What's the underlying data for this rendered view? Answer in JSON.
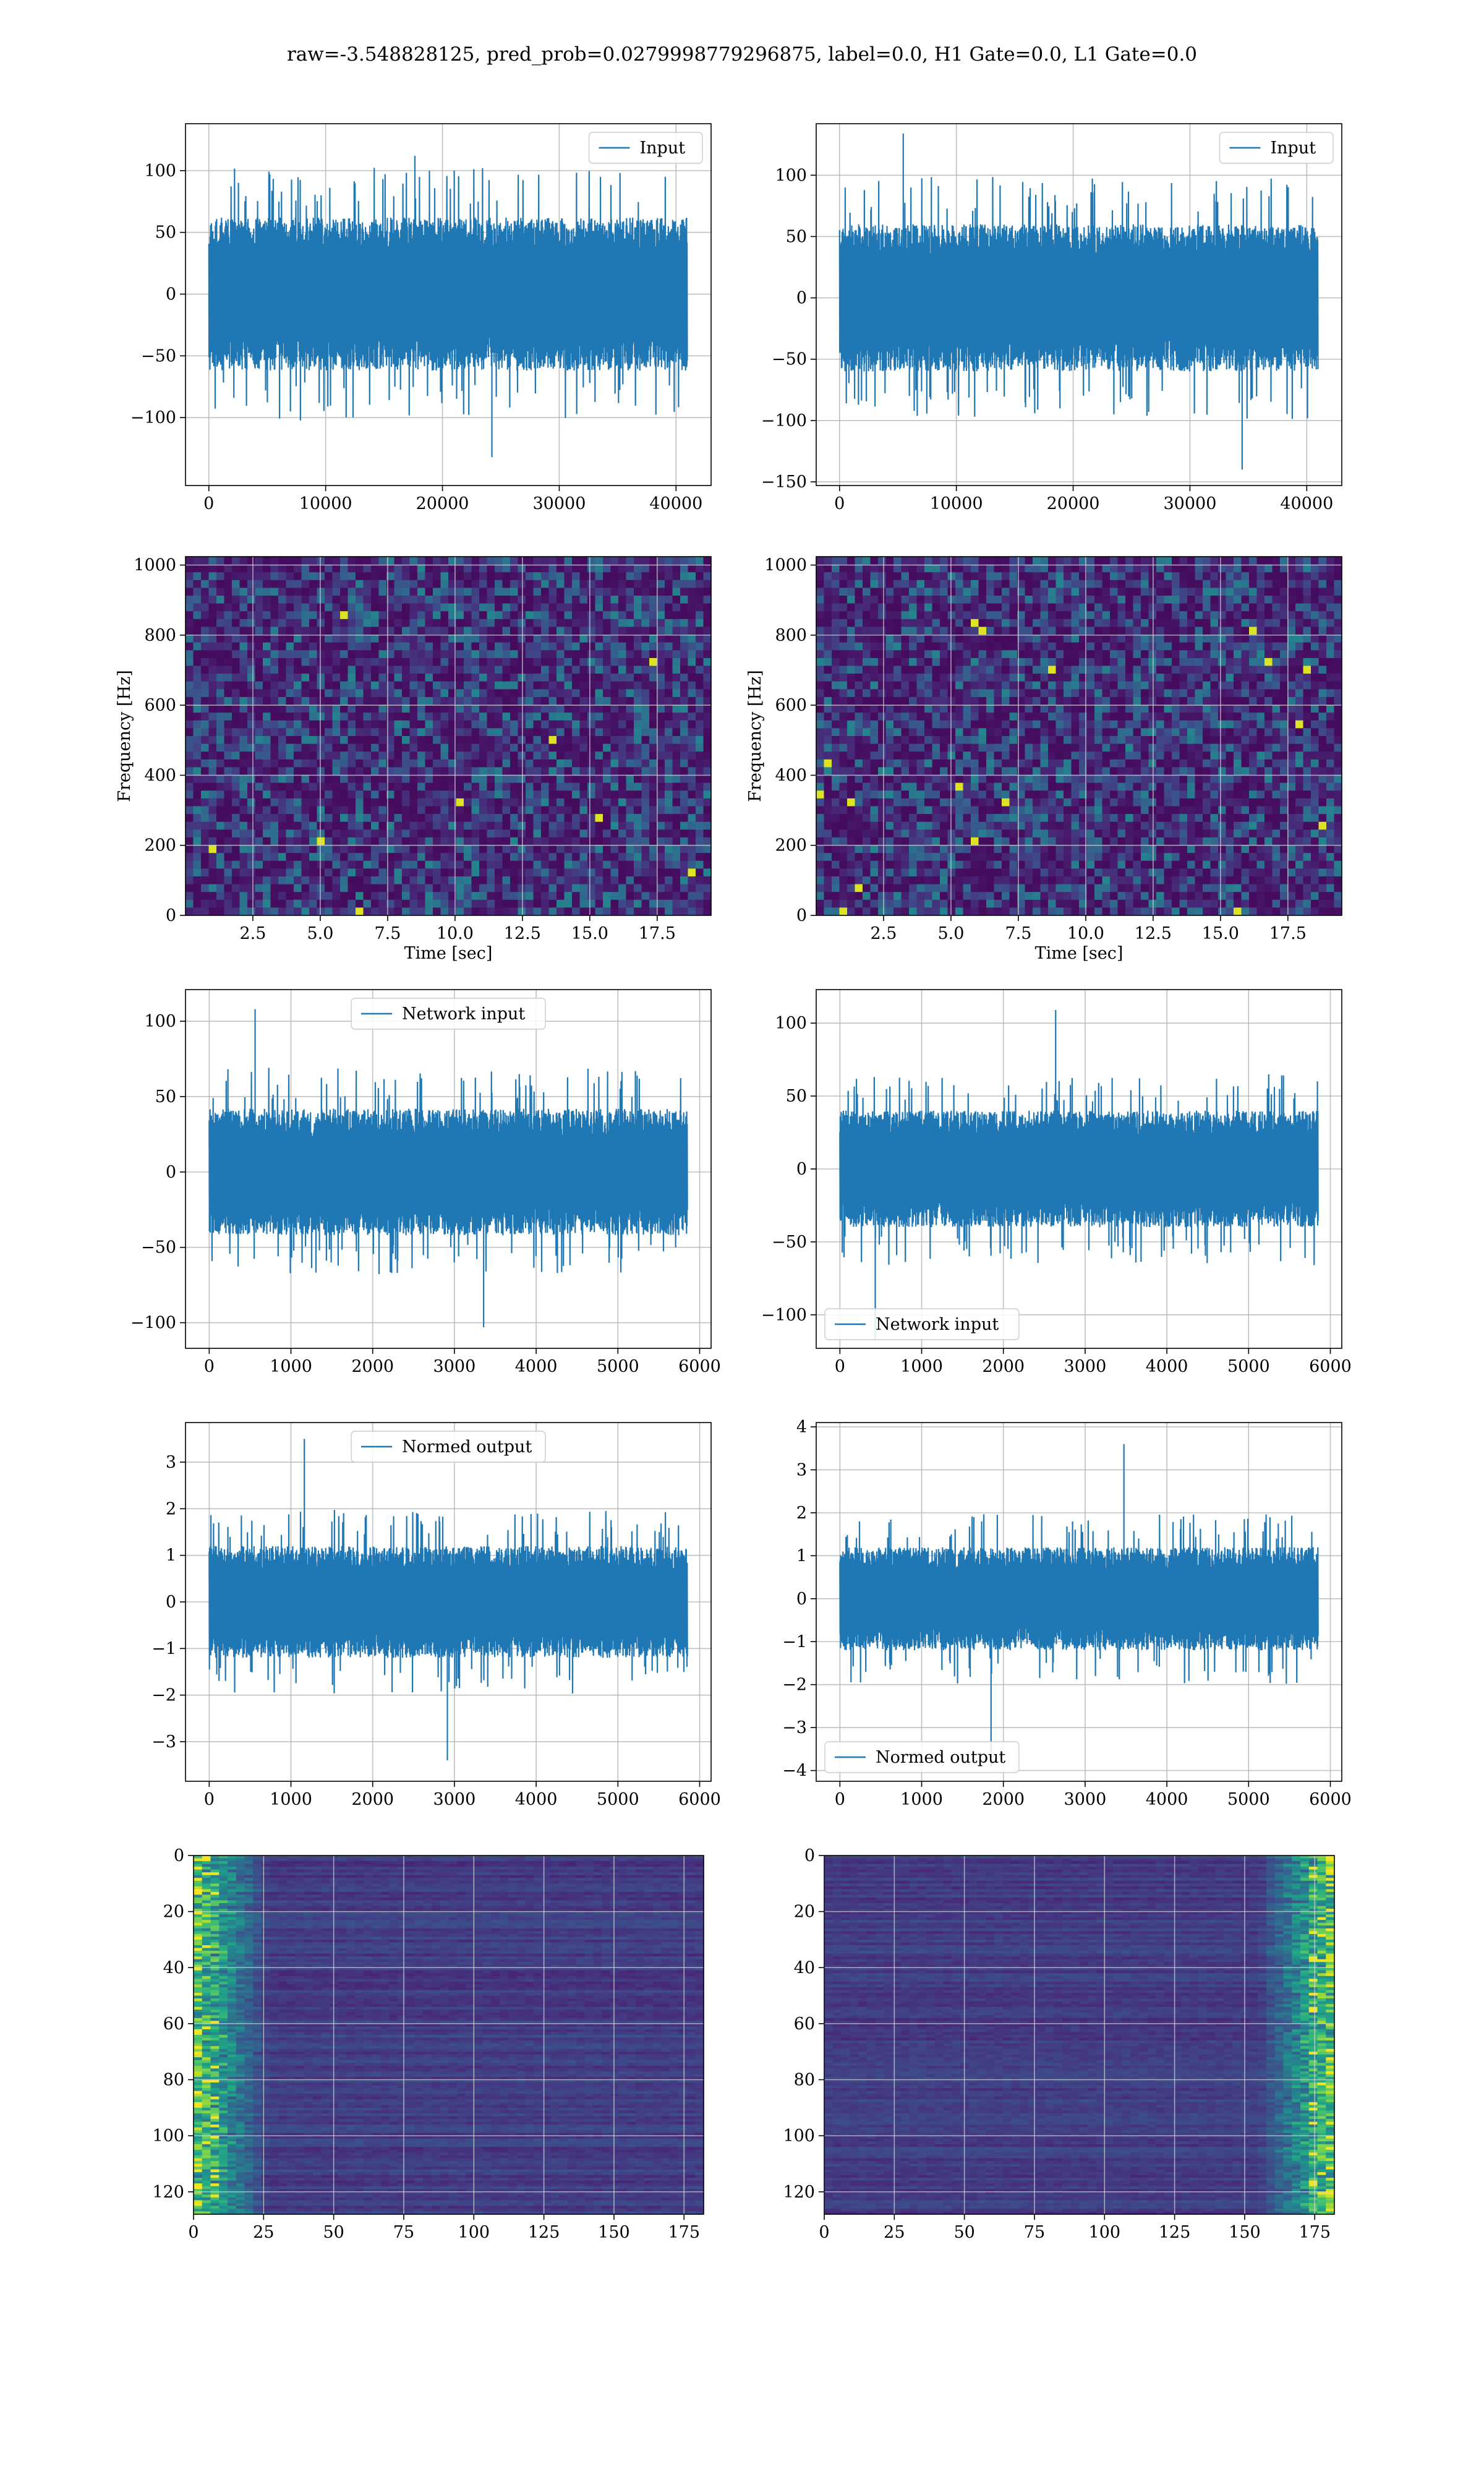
{
  "figure": {
    "title": "raw=-3.548828125, pred_prob=0.0279998779296875, label=0.0, H1 Gate=0.0, L1 Gate=0.0"
  },
  "chart_data": [
    {
      "id": "h1-input",
      "type": "line",
      "series": [
        {
          "name": "Input",
          "color": "#1f77b4",
          "n_samples": 40960,
          "envelope": {
            "typical_amplitude": 62,
            "peak_max": 112,
            "peak_min": -132
          }
        }
      ],
      "legend": "upper right",
      "xlim": [
        -2000,
        43000
      ],
      "ylim": [
        -155,
        138
      ],
      "xticks": [
        0,
        10000,
        20000,
        30000,
        40000
      ],
      "xtick_labels": [
        "0",
        "10000",
        "20000",
        "30000",
        "40000"
      ],
      "yticks": [
        -100,
        -50,
        0,
        50,
        100
      ],
      "ytick_labels": [
        "−100",
        "−50",
        "0",
        "50",
        "100"
      ],
      "grid": true
    },
    {
      "id": "l1-input",
      "type": "line",
      "series": [
        {
          "name": "Input",
          "color": "#1f77b4",
          "n_samples": 40960,
          "envelope": {
            "typical_amplitude": 60,
            "peak_max": 134,
            "peak_min": -140
          }
        }
      ],
      "legend": "upper right",
      "xlim": [
        -2000,
        43000
      ],
      "ylim": [
        -153,
        142
      ],
      "xticks": [
        0,
        10000,
        20000,
        30000,
        40000
      ],
      "xtick_labels": [
        "0",
        "10000",
        "20000",
        "30000",
        "40000"
      ],
      "yticks": [
        -150,
        -100,
        -50,
        0,
        50,
        100
      ],
      "ytick_labels": [
        "−150",
        "−100",
        "−50",
        "0",
        "50",
        "100"
      ],
      "grid": true
    },
    {
      "id": "h1-spectrogram",
      "type": "heatmap",
      "xlabel": "Time [sec]",
      "ylabel": "Frequency [Hz]",
      "xlim": [
        0,
        19.5
      ],
      "ylim": [
        0,
        1024
      ],
      "xticks": [
        2.5,
        5.0,
        7.5,
        10.0,
        12.5,
        15.0,
        17.5
      ],
      "xtick_labels": [
        "2.5",
        "5.0",
        "7.5",
        "10.0",
        "12.5",
        "15.0",
        "17.5"
      ],
      "yticks": [
        0,
        200,
        400,
        600,
        800,
        1000
      ],
      "ytick_labels": [
        "0",
        "200",
        "400",
        "600",
        "800",
        "1000"
      ],
      "colormap": "viridis",
      "grid": true
    },
    {
      "id": "l1-spectrogram",
      "type": "heatmap",
      "xlabel": "Time [sec]",
      "ylabel": "Frequency [Hz]",
      "xlim": [
        0,
        19.5
      ],
      "ylim": [
        0,
        1024
      ],
      "xticks": [
        2.5,
        5.0,
        7.5,
        10.0,
        12.5,
        15.0,
        17.5
      ],
      "xtick_labels": [
        "2.5",
        "5.0",
        "7.5",
        "10.0",
        "12.5",
        "15.0",
        "17.5"
      ],
      "yticks": [
        0,
        200,
        400,
        600,
        800,
        1000
      ],
      "ytick_labels": [
        "0",
        "200",
        "400",
        "600",
        "800",
        "1000"
      ],
      "colormap": "viridis",
      "grid": true
    },
    {
      "id": "h1-network-input",
      "type": "line",
      "series": [
        {
          "name": "Network input",
          "color": "#1f77b4",
          "n_samples": 5850,
          "envelope": {
            "typical_amplitude": 42,
            "peak_max": 108,
            "peak_min": -103
          }
        }
      ],
      "legend": "upper center",
      "xlim": [
        -290,
        6140
      ],
      "ylim": [
        -117,
        121
      ],
      "xticks": [
        0,
        1000,
        2000,
        3000,
        4000,
        5000,
        6000
      ],
      "xtick_labels": [
        "0",
        "1000",
        "2000",
        "3000",
        "4000",
        "5000",
        "6000"
      ],
      "yticks": [
        -100,
        -50,
        0,
        50,
        100
      ],
      "ytick_labels": [
        "−100",
        "−50",
        "0",
        "50",
        "100"
      ],
      "grid": true
    },
    {
      "id": "l1-network-input",
      "type": "line",
      "series": [
        {
          "name": "Network input",
          "color": "#1f77b4",
          "n_samples": 5850,
          "envelope": {
            "typical_amplitude": 40,
            "peak_max": 109,
            "peak_min": -117
          }
        }
      ],
      "legend": "lower left",
      "xlim": [
        -290,
        6140
      ],
      "ylim": [
        -123,
        123
      ],
      "xticks": [
        0,
        1000,
        2000,
        3000,
        4000,
        5000,
        6000
      ],
      "xtick_labels": [
        "0",
        "1000",
        "2000",
        "3000",
        "4000",
        "5000",
        "6000"
      ],
      "yticks": [
        -100,
        -50,
        0,
        50,
        100
      ],
      "ytick_labels": [
        "−100",
        "−50",
        "0",
        "50",
        "100"
      ],
      "grid": true
    },
    {
      "id": "h1-normed-output",
      "type": "line",
      "series": [
        {
          "name": "Normed output",
          "color": "#1f77b4",
          "n_samples": 5850,
          "envelope": {
            "typical_amplitude": 1.2,
            "peak_max": 3.5,
            "peak_min": -3.4
          }
        }
      ],
      "legend": "upper center",
      "xlim": [
        -290,
        6140
      ],
      "ylim": [
        -3.85,
        3.85
      ],
      "xticks": [
        0,
        1000,
        2000,
        3000,
        4000,
        5000,
        6000
      ],
      "xtick_labels": [
        "0",
        "1000",
        "2000",
        "3000",
        "4000",
        "5000",
        "6000"
      ],
      "yticks": [
        -3,
        -2,
        -1,
        0,
        1,
        2,
        3
      ],
      "ytick_labels": [
        "−3",
        "−2",
        "−1",
        "0",
        "1",
        "2",
        "3"
      ],
      "grid": true
    },
    {
      "id": "l1-normed-output",
      "type": "line",
      "series": [
        {
          "name": "Normed output",
          "color": "#1f77b4",
          "n_samples": 5850,
          "envelope": {
            "typical_amplitude": 1.2,
            "peak_max": 3.6,
            "peak_min": -3.9
          }
        }
      ],
      "legend": "lower left",
      "xlim": [
        -290,
        6140
      ],
      "ylim": [
        -4.25,
        4.1
      ],
      "xticks": [
        0,
        1000,
        2000,
        3000,
        4000,
        5000,
        6000
      ],
      "xtick_labels": [
        "0",
        "1000",
        "2000",
        "3000",
        "4000",
        "5000",
        "6000"
      ],
      "yticks": [
        -4,
        -3,
        -2,
        -1,
        0,
        1,
        2,
        3,
        4
      ],
      "ytick_labels": [
        "−4",
        "−3",
        "−2",
        "−1",
        "0",
        "1",
        "2",
        "3",
        "4"
      ],
      "grid": true
    },
    {
      "id": "h1-feature-map",
      "type": "heatmap",
      "xlim": [
        0,
        182
      ],
      "ylim": [
        128,
        0
      ],
      "xticks": [
        0,
        25,
        50,
        75,
        100,
        125,
        150,
        175
      ],
      "xtick_labels": [
        "0",
        "25",
        "50",
        "75",
        "100",
        "125",
        "150",
        "175"
      ],
      "yticks": [
        0,
        20,
        40,
        60,
        80,
        100,
        120
      ],
      "ytick_labels": [
        "0",
        "20",
        "40",
        "60",
        "80",
        "100",
        "120"
      ],
      "colormap": "viridis",
      "bright_region": "left edge (x < 25)",
      "grid": true
    },
    {
      "id": "l1-feature-map",
      "type": "heatmap",
      "xlim": [
        0,
        182
      ],
      "ylim": [
        128,
        0
      ],
      "xticks": [
        0,
        25,
        50,
        75,
        100,
        125,
        150,
        175
      ],
      "xtick_labels": [
        "0",
        "25",
        "50",
        "75",
        "100",
        "125",
        "150",
        "175"
      ],
      "yticks": [
        0,
        20,
        40,
        60,
        80,
        100,
        120
      ],
      "ytick_labels": [
        "0",
        "20",
        "40",
        "60",
        "80",
        "100",
        "120"
      ],
      "colormap": "viridis",
      "bright_region": "right edge (x > 155)",
      "grid": true
    }
  ]
}
